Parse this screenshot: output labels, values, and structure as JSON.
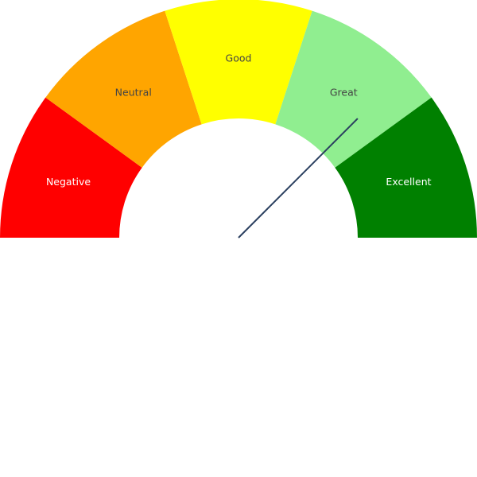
{
  "chart_data": {
    "type": "gauge",
    "title": "",
    "segments": [
      {
        "label": "Negative",
        "value": 1,
        "color": "#ff0000",
        "label_color": "#ffffff"
      },
      {
        "label": "Neutral",
        "value": 1,
        "color": "#ffa500",
        "label_color": "#444444"
      },
      {
        "label": "Good",
        "value": 1,
        "color": "#ffff00",
        "label_color": "#444444"
      },
      {
        "label": "Great",
        "value": 1,
        "color": "#90ee90",
        "label_color": "#444444"
      },
      {
        "label": "Excellent",
        "value": 1,
        "color": "#008000",
        "label_color": "#ffffff"
      }
    ],
    "needle": {
      "value": 0.75,
      "color": "#2a3f5f"
    }
  }
}
